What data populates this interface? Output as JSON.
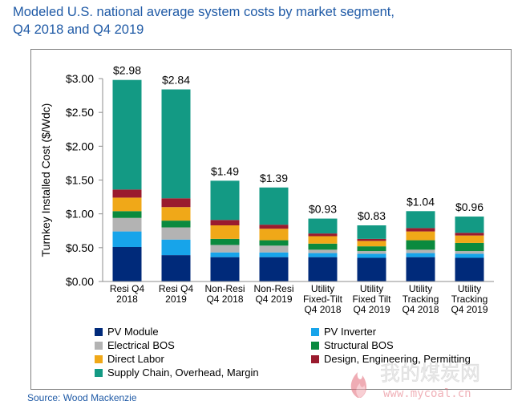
{
  "title_line1": "Modeled U.S. national average system costs by market segment,",
  "title_line2": "Q4 2018 and Q4 2019",
  "source": "Source: Wood Mackenzie",
  "chart_data": {
    "type": "bar",
    "stacked": true,
    "ylabel": "Turnkey Installed Cost ($/Wdc)",
    "ylim": [
      0,
      3.0
    ],
    "yticks": [
      "$0.00",
      "$0.50",
      "$1.00",
      "$1.50",
      "$2.00",
      "$2.50",
      "$3.00"
    ],
    "grid": false,
    "legend_position": "bottom",
    "categories": [
      [
        "Resi Q4",
        "2018"
      ],
      [
        "Resi Q4",
        "2019"
      ],
      [
        "Non-Resi",
        "Q4 2018"
      ],
      [
        "Non-Resi",
        "Q4 2019"
      ],
      [
        "Utility",
        "Fixed-Tilt",
        "Q4 2018"
      ],
      [
        "Utility",
        "Fixed Tilt",
        "Q4 2019"
      ],
      [
        "Utility",
        "Tracking",
        "Q4 2018"
      ],
      [
        "Utility",
        "Tracking",
        "Q4 2019"
      ]
    ],
    "totals": [
      "$2.98",
      "$2.84",
      "$1.49",
      "$1.39",
      "$0.93",
      "$0.83",
      "$1.04",
      "$0.96"
    ],
    "series": [
      {
        "name": "PV Module",
        "color": "#002a7a",
        "values": [
          0.51,
          0.39,
          0.36,
          0.36,
          0.36,
          0.35,
          0.36,
          0.35
        ]
      },
      {
        "name": "PV Inverter",
        "color": "#17a4ea",
        "values": [
          0.23,
          0.23,
          0.07,
          0.07,
          0.06,
          0.06,
          0.06,
          0.06
        ]
      },
      {
        "name": "Electrical BOS",
        "color": "#b3b3b3",
        "values": [
          0.2,
          0.18,
          0.11,
          0.1,
          0.05,
          0.04,
          0.05,
          0.04
        ]
      },
      {
        "name": "Structural BOS",
        "color": "#0a8a3e",
        "values": [
          0.1,
          0.1,
          0.09,
          0.08,
          0.09,
          0.07,
          0.14,
          0.12
        ]
      },
      {
        "name": "Direct Labor",
        "color": "#f0a818",
        "values": [
          0.2,
          0.2,
          0.2,
          0.17,
          0.11,
          0.08,
          0.13,
          0.11
        ]
      },
      {
        "name": "Design, Engineering, Permitting",
        "color": "#9a1b2e",
        "values": [
          0.12,
          0.13,
          0.08,
          0.06,
          0.04,
          0.03,
          0.05,
          0.04
        ]
      },
      {
        "name": "Supply Chain, Overhead, Margin",
        "color": "#139a84",
        "values": [
          1.62,
          1.61,
          0.58,
          0.55,
          0.22,
          0.2,
          0.25,
          0.24
        ]
      }
    ]
  },
  "watermark": {
    "brand": "我的煤炭网",
    "url": "www.mycoal.cn"
  }
}
